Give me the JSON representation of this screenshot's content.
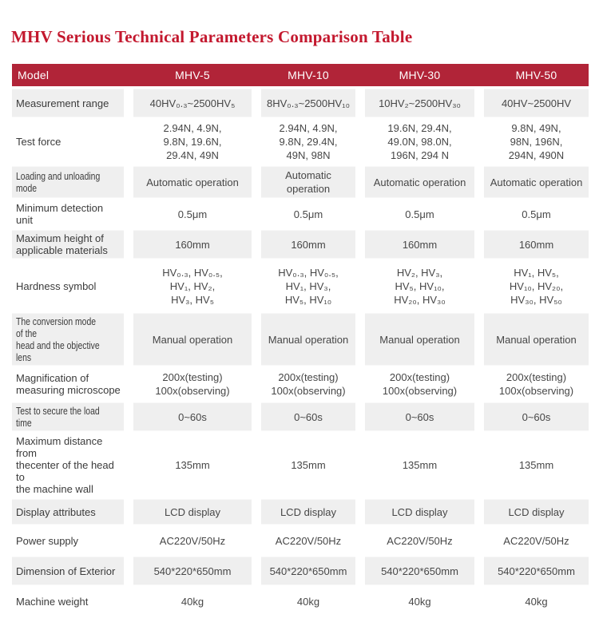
{
  "page_title": "MHV Serious Technical Parameters Comparison Table",
  "colors": {
    "title_text": "#c3182e",
    "header_bg": "#b12438",
    "header_text": "#ffffff",
    "shaded_row_bg": "#efefef",
    "body_text": "#474747"
  },
  "table": {
    "header": {
      "model_label": "Model",
      "columns": [
        "MHV-5",
        "MHV-10",
        "MHV-30",
        "MHV-50"
      ]
    },
    "rows": [
      {
        "label": "Measurement range",
        "c1": "40HV₀.₃~2500HV₅",
        "c2": "8HV₀.₃~2500HV₁₀",
        "c3": "10HV₂~2500HV₃₀",
        "c4": "40HV~2500HV"
      },
      {
        "label": "Test force",
        "c1": "2.94N, 4.9N,\n9.8N, 19.6N,\n29.4N, 49N",
        "c2": "2.94N, 4.9N,\n9.8N, 29.4N,\n49N, 98N",
        "c3": "19.6N, 29.4N,\n49.0N, 98.0N,\n196N, 294 N",
        "c4": "9.8N, 49N,\n98N, 196N,\n294N, 490N"
      },
      {
        "label": "Loading and unloading mode",
        "c1": "Automatic operation",
        "c2": "Automatic operation",
        "c3": "Automatic operation",
        "c4": "Automatic operation"
      },
      {
        "label": "Minimum detection unit",
        "c1": "0.5μm",
        "c2": "0.5μm",
        "c3": "0.5μm",
        "c4": "0.5μm"
      },
      {
        "label": "Maximum height of\napplicable materials",
        "c1": "160mm",
        "c2": "160mm",
        "c3": "160mm",
        "c4": "160mm"
      },
      {
        "label": "Hardness symbol",
        "c1": "HV₀.₃, HV₀.₅,\nHV₁, HV₂,\nHV₃, HV₅",
        "c2": "HV₀.₃, HV₀.₅,\nHV₁, HV₃,\nHV₅, HV₁₀",
        "c3": "HV₂, HV₃,\nHV₅, HV₁₀,\nHV₂₀, HV₃₀",
        "c4": "HV₁, HV₅,\nHV₁₀, HV₂₀,\nHV₃₀, HV₅₀"
      },
      {
        "label": "The conversion mode of the\nhead and the objective lens",
        "c1": "Manual operation",
        "c2": "Manual operation",
        "c3": "Manual operation",
        "c4": "Manual operation"
      },
      {
        "label": "Magnification of\nmeasuring microscope",
        "c1": "200x(testing)\n100x(observing)",
        "c2": "200x(testing)\n100x(observing)",
        "c3": "200x(testing)\n100x(observing)",
        "c4": "200x(testing)\n100x(observing)"
      },
      {
        "label": "Test to secure the load time",
        "c1": "0~60s",
        "c2": "0~60s",
        "c3": "0~60s",
        "c4": "0~60s"
      },
      {
        "label": "Maximum distance from\nthecenter of the head to\nthe machine wall",
        "c1": "135mm",
        "c2": "135mm",
        "c3": "135mm",
        "c4": "135mm"
      },
      {
        "label": "Display attributes",
        "c1": "LCD display",
        "c2": "LCD display",
        "c3": "LCD display",
        "c4": "LCD display"
      },
      {
        "label": "Power supply",
        "c1": "AC220V/50Hz",
        "c2": "AC220V/50Hz",
        "c3": "AC220V/50Hz",
        "c4": "AC220V/50Hz"
      },
      {
        "label": "Dimension of Exterior",
        "c1": "540*220*650mm",
        "c2": "540*220*650mm",
        "c3": "540*220*650mm",
        "c4": "540*220*650mm"
      },
      {
        "label": "Machine weight",
        "c1": "40kg",
        "c2": "40kg",
        "c3": "40kg",
        "c4": "40kg"
      }
    ]
  }
}
